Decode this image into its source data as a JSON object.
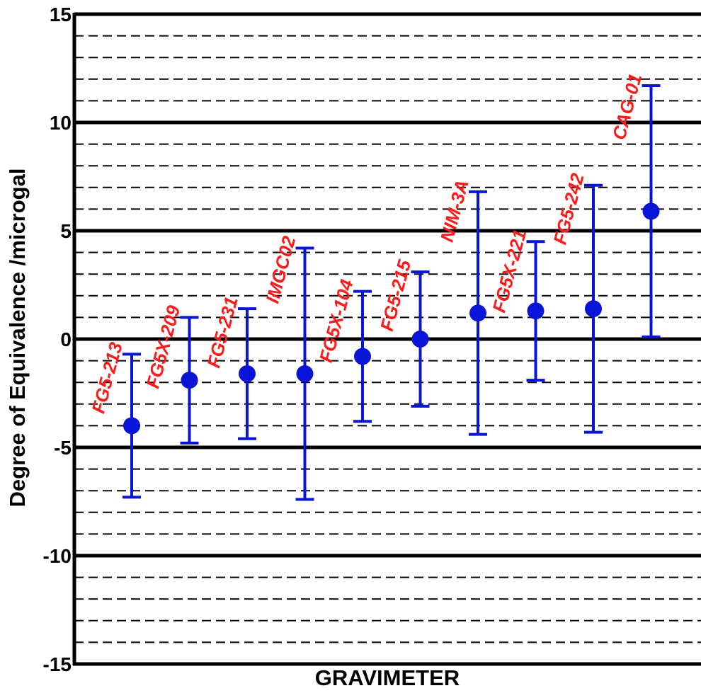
{
  "chart_data": {
    "type": "scatter",
    "title": "",
    "xlabel": "GRAVIMETER",
    "ylabel": "Degree of Equivalence /microgal",
    "ylim": [
      -15,
      15
    ],
    "yticks": [
      -15,
      -10,
      -5,
      0,
      5,
      10,
      15
    ],
    "y_tick_labels": [
      "-15",
      "-10",
      "-5",
      "0",
      "5",
      "10",
      "15"
    ],
    "major_grid_interval": 5,
    "minor_grid_interval": 1,
    "grid": true,
    "series": [
      {
        "points": [
          {
            "label": "FG5-213",
            "value": -4.0,
            "lower": -7.3,
            "upper": -0.7
          },
          {
            "label": "FG5X-209",
            "value": -1.9,
            "lower": -4.8,
            "upper": 1.0
          },
          {
            "label": "FG5-231",
            "value": -1.6,
            "lower": -4.6,
            "upper": 1.4
          },
          {
            "label": "IMGC02",
            "value": -1.6,
            "lower": -7.4,
            "upper": 4.2
          },
          {
            "label": "FG5X-104",
            "value": -0.8,
            "lower": -3.8,
            "upper": 2.2
          },
          {
            "label": "FG5-215",
            "value": 0.0,
            "lower": -3.1,
            "upper": 3.1
          },
          {
            "label": "NIM-3A",
            "value": 1.2,
            "lower": -4.4,
            "upper": 6.8
          },
          {
            "label": "FG5X-221",
            "value": 1.3,
            "lower": -1.9,
            "upper": 4.5
          },
          {
            "label": "FG5-242",
            "value": 1.4,
            "lower": -4.3,
            "upper": 7.1
          },
          {
            "label": "CAG-01",
            "value": 5.9,
            "lower": 0.1,
            "upper": 11.7
          }
        ]
      }
    ],
    "colors": {
      "marker": "#0a14d6",
      "label": "#ff1a1a",
      "grid": "#000000"
    }
  }
}
